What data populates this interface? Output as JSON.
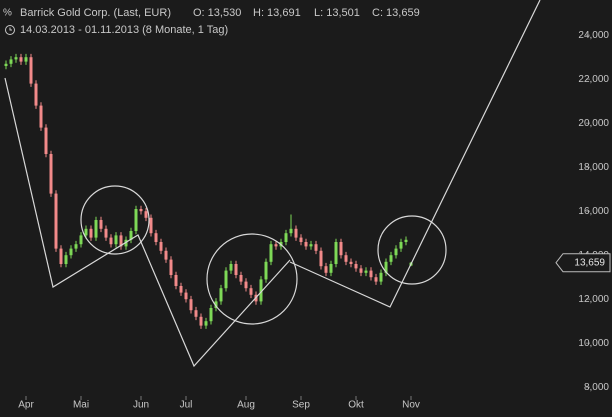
{
  "chart_data": {
    "type": "candlestick",
    "title": "Barrick Gold Corp. (Last, EUR)",
    "ohlc_header": [
      "O: 13,530",
      "H: 13,691",
      "L: 13,501",
      "C: 13,659"
    ],
    "subtitle": "14.03.2013 - 01.11.2013 (8 Monate, 1 Tag)",
    "categories": [
      null,
      null,
      null,
      null,
      "Apr",
      null,
      null,
      null,
      null,
      null,
      null,
      null,
      null,
      null,
      null,
      "Mai",
      null,
      null,
      null,
      null,
      null,
      null,
      null,
      null,
      null,
      null,
      null,
      "Jun",
      null,
      null,
      null,
      null,
      null,
      null,
      null,
      null,
      "Jul",
      null,
      null,
      null,
      null,
      null,
      null,
      null,
      null,
      null,
      null,
      null,
      "Aug",
      null,
      null,
      null,
      null,
      null,
      null,
      null,
      null,
      null,
      null,
      "Sep",
      null,
      null,
      null,
      null,
      null,
      null,
      null,
      null,
      null,
      null,
      "Okt",
      null,
      null,
      null,
      null,
      null,
      null,
      null,
      null,
      null,
      null,
      "Nov"
    ],
    "series": {
      "open": [
        22600,
        22700,
        22900,
        23000,
        22800,
        23000,
        21800,
        20800,
        19800,
        18600,
        16800,
        14300,
        13600,
        14000,
        14300,
        14500,
        14900,
        15200,
        14800,
        15600,
        15200,
        14800,
        14500,
        14900,
        14400,
        14700,
        15100,
        16100,
        16000,
        15700,
        15000,
        14600,
        14200,
        13800,
        13100,
        12600,
        12300,
        12000,
        11500,
        11200,
        10800,
        11000,
        11600,
        11900,
        12500,
        13300,
        13600,
        13100,
        12800,
        12500,
        12200,
        11900,
        12900,
        13700,
        14500,
        14400,
        14600,
        15000,
        15200,
        14800,
        14600,
        14400,
        14500,
        14200,
        13500,
        13200,
        13600,
        14600,
        14000,
        13700,
        13600,
        13400,
        13200,
        13300,
        13000,
        12800,
        13200,
        13700,
        14000,
        14300,
        14600,
        13530
      ],
      "high": [
        22850,
        23050,
        23150,
        23150,
        23150,
        23150,
        21950,
        20950,
        19950,
        18750,
        16950,
        14450,
        14150,
        14450,
        14650,
        15050,
        15350,
        15350,
        15750,
        15750,
        15350,
        14950,
        15050,
        15050,
        14850,
        15250,
        16250,
        16250,
        16150,
        15850,
        15150,
        14750,
        14350,
        13950,
        13250,
        12750,
        12450,
        12150,
        11650,
        11350,
        11150,
        11750,
        12050,
        12650,
        13450,
        13750,
        13750,
        13250,
        12950,
        12650,
        12350,
        13050,
        13850,
        14650,
        14650,
        14750,
        15150,
        15850,
        15350,
        14950,
        14750,
        14650,
        14650,
        14350,
        13650,
        13750,
        14750,
        14750,
        14150,
        13850,
        13750,
        13550,
        13450,
        13450,
        13150,
        13350,
        13850,
        14150,
        14450,
        14750,
        14850,
        13691
      ],
      "low": [
        22450,
        22550,
        22750,
        22650,
        22650,
        21650,
        20650,
        19650,
        18450,
        16650,
        14150,
        13450,
        13450,
        13850,
        14150,
        14350,
        14750,
        14650,
        14650,
        15050,
        14650,
        14350,
        14350,
        14250,
        14250,
        14550,
        14950,
        15850,
        15550,
        14850,
        14450,
        14050,
        13650,
        12950,
        12450,
        12150,
        11850,
        11350,
        11050,
        10650,
        10650,
        10850,
        11450,
        11750,
        12350,
        13150,
        12950,
        12650,
        12350,
        12050,
        11750,
        11750,
        12750,
        13550,
        14250,
        14250,
        14450,
        14850,
        14650,
        14450,
        14250,
        14250,
        14050,
        13350,
        13050,
        13050,
        13450,
        13850,
        13550,
        13450,
        13250,
        13050,
        13050,
        12850,
        12650,
        12650,
        13050,
        13550,
        13850,
        14150,
        14450,
        13501
      ],
      "close": [
        22700,
        22900,
        23000,
        22800,
        23000,
        21800,
        20800,
        19800,
        18600,
        16800,
        14300,
        13600,
        14000,
        14300,
        14500,
        14900,
        15200,
        14800,
        15600,
        15200,
        14800,
        14500,
        14900,
        14400,
        14700,
        15100,
        16100,
        16000,
        15700,
        15000,
        14600,
        14200,
        13800,
        13100,
        12600,
        12300,
        12000,
        11500,
        11200,
        10800,
        11000,
        11600,
        11900,
        12500,
        13300,
        13600,
        13100,
        12800,
        12500,
        12200,
        11900,
        12900,
        13700,
        14500,
        14400,
        14600,
        15000,
        15200,
        14800,
        14600,
        14400,
        14500,
        14200,
        13500,
        13200,
        13600,
        14600,
        14000,
        13700,
        13600,
        13400,
        13200,
        13300,
        13000,
        12800,
        13200,
        13700,
        14000,
        14300,
        14600,
        14700,
        13659
      ]
    },
    "up_color": "#7ed957",
    "down_color": "#f28a8a",
    "ylim": [
      7600,
      25600
    ],
    "yticks": [
      {
        "value": 8000,
        "label": "8,000"
      },
      {
        "value": 10000,
        "label": "10,000"
      },
      {
        "value": 12000,
        "label": "12,000"
      },
      {
        "value": 14000,
        "label": "14,000"
      },
      {
        "value": 16000,
        "label": "16,000"
      },
      {
        "value": 18000,
        "label": "18,000"
      },
      {
        "value": 20000,
        "label": "20,000"
      },
      {
        "value": 22000,
        "label": "22,000"
      },
      {
        "value": 24000,
        "label": "24,000"
      }
    ],
    "last_price": {
      "value": 13659,
      "label": "13,659"
    }
  }
}
